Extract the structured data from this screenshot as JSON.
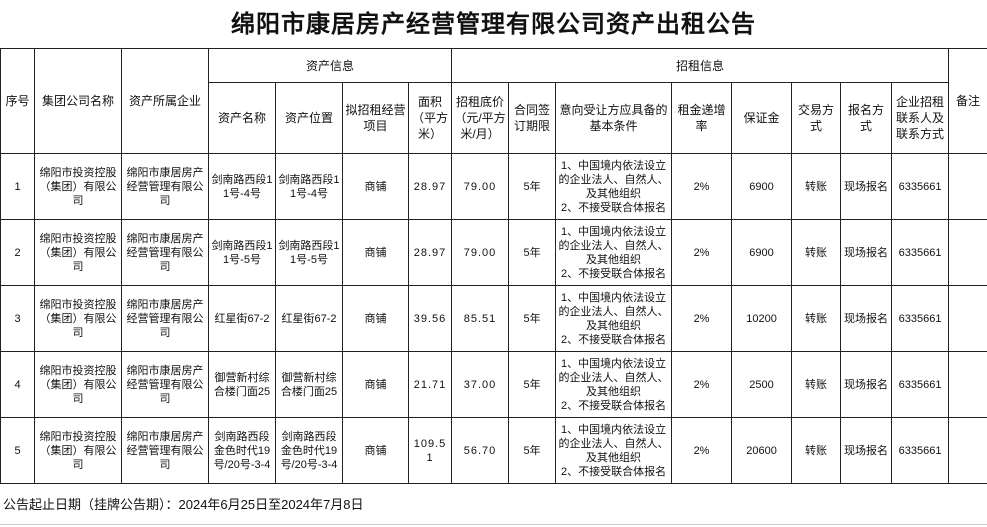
{
  "title": "绵阳市康居房产经营管理有限公司资产出租公告",
  "headers": {
    "seq": "序号",
    "group": "集团公司名称",
    "owner": "资产所属企业",
    "asset_info": "资产信息",
    "rent_info": "招租信息",
    "asset_name": "资产名称",
    "asset_location": "资产位置",
    "business": "拟招租经营项目",
    "area": "面积（平方米）",
    "price": "招租底价（元/平方米/月）",
    "term": "合同签订期限",
    "conditions": "意向受让方应具备的基本条件",
    "increase": "租金递增率",
    "deposit": "保证金",
    "trade": "交易方式",
    "signup": "报名方式",
    "contact": "企业招租联系人及联系方式",
    "remark": "备注"
  },
  "rows": [
    {
      "seq": "1",
      "group": "绵阳市投资控股（集团）有限公司",
      "owner": "绵阳市康居房产经营管理有限公司",
      "name": "剑南路西段11号-4号",
      "location": "剑南路西段11号-4号",
      "business": "商铺",
      "area": "28.97",
      "price": "79.00",
      "term": "5年",
      "conditions": "1、中国境内依法设立的企业法人、自然人、及其他组织\n2、不接受联合体报名",
      "increase": "2%",
      "deposit": "6900",
      "trade": "转账",
      "signup": "现场报名",
      "contact": "6335661",
      "remark": ""
    },
    {
      "seq": "2",
      "group": "绵阳市投资控股（集团）有限公司",
      "owner": "绵阳市康居房产经营管理有限公司",
      "name": "剑南路西段11号-5号",
      "location": "剑南路西段11号-5号",
      "business": "商铺",
      "area": "28.97",
      "price": "79.00",
      "term": "5年",
      "conditions": "1、中国境内依法设立的企业法人、自然人、及其他组织\n2、不接受联合体报名",
      "increase": "2%",
      "deposit": "6900",
      "trade": "转账",
      "signup": "现场报名",
      "contact": "6335661",
      "remark": ""
    },
    {
      "seq": "3",
      "group": "绵阳市投资控股（集团）有限公司",
      "owner": "绵阳市康居房产经营管理有限公司",
      "name": "红星街67-2",
      "location": "红星街67-2",
      "business": "商铺",
      "area": "39.56",
      "price": "85.51",
      "term": "5年",
      "conditions": "1、中国境内依法设立的企业法人、自然人、及其他组织\n2、不接受联合体报名",
      "increase": "2%",
      "deposit": "10200",
      "trade": "转账",
      "signup": "现场报名",
      "contact": "6335661",
      "remark": ""
    },
    {
      "seq": "4",
      "group": "绵阳市投资控股（集团）有限公司",
      "owner": "绵阳市康居房产经营管理有限公司",
      "name": "御营新村综合楼门面25",
      "location": "御营新村综合楼门面25",
      "business": "商铺",
      "area": "21.71",
      "price": "37.00",
      "term": "5年",
      "conditions": "1、中国境内依法设立的企业法人、自然人、及其他组织\n2、不接受联合体报名",
      "increase": "2%",
      "deposit": "2500",
      "trade": "转账",
      "signup": "现场报名",
      "contact": "6335661",
      "remark": ""
    },
    {
      "seq": "5",
      "group": "绵阳市投资控股（集团）有限公司",
      "owner": "绵阳市康居房产经营管理有限公司",
      "name": "剑南路西段金色时代19号/20号-3-4",
      "location": "剑南路西段金色时代19号/20号-3-4",
      "business": "商铺",
      "area": "109.51",
      "price": "56.70",
      "term": "5年",
      "conditions": "1、中国境内依法设立的企业法人、自然人、及其他组织\n2、不接受联合体报名",
      "increase": "2%",
      "deposit": "20600",
      "trade": "转账",
      "signup": "现场报名",
      "contact": "6335661",
      "remark": ""
    }
  ],
  "footer": "公告起止日期（挂牌公告期）：2024年6月25日至2024年7月8日"
}
